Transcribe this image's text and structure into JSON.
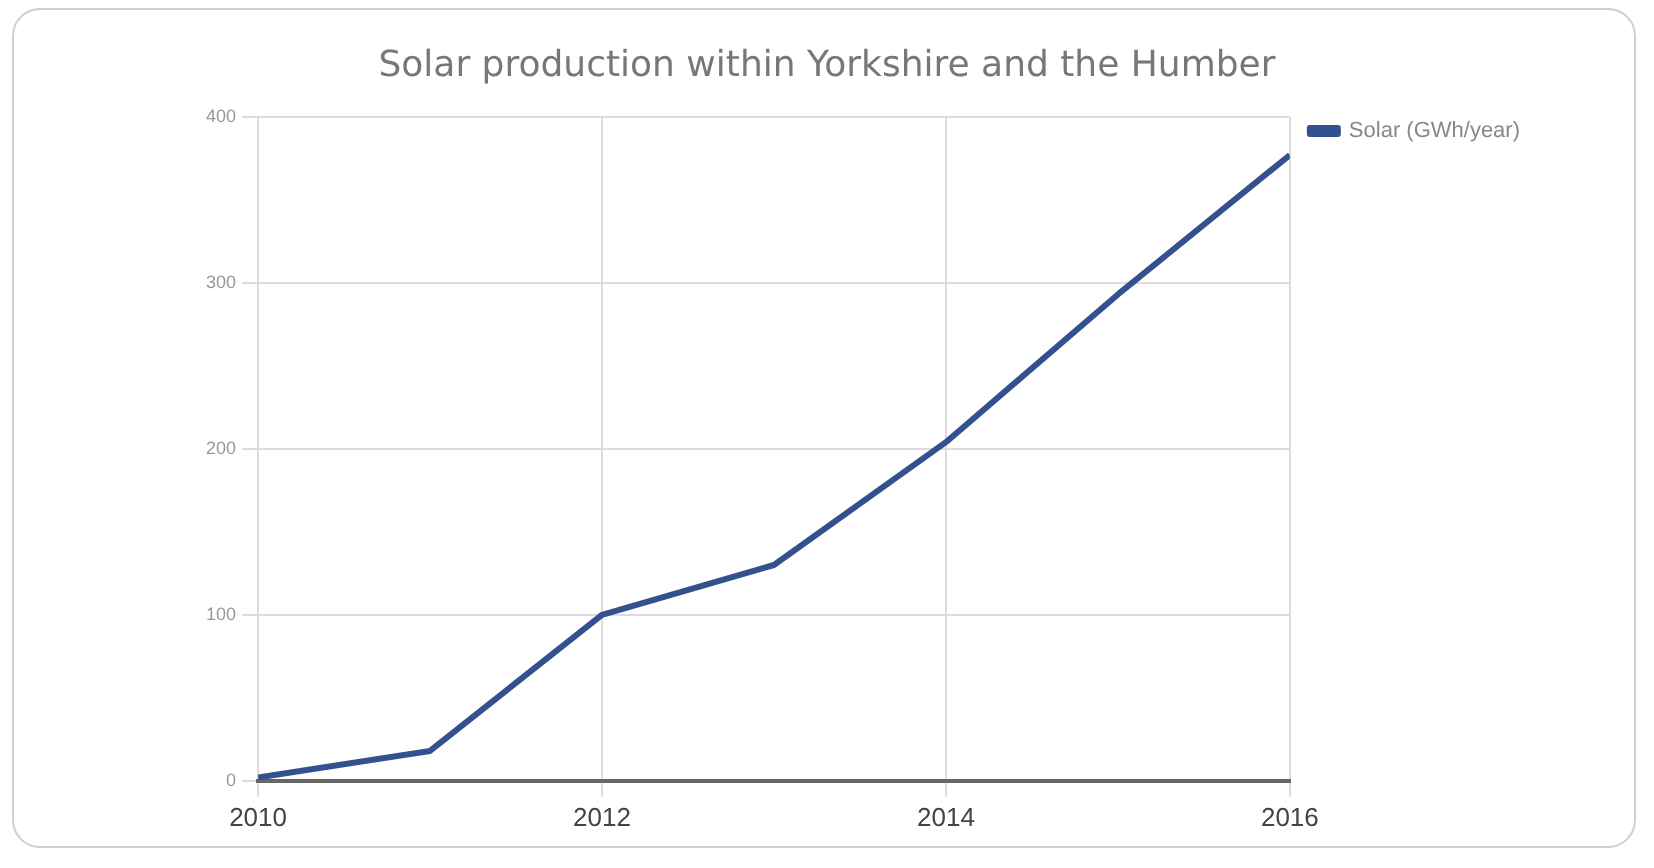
{
  "chart_data": {
    "type": "line",
    "title": "Solar production within Yorkshire and the Humber",
    "x": [
      2010,
      2011,
      2012,
      2013,
      2014,
      2015,
      2016
    ],
    "series": [
      {
        "name": "Solar (GWh/year)",
        "color": "#34518f",
        "values": [
          2,
          18,
          100,
          130,
          204,
          293,
          377
        ]
      }
    ],
    "xlim": [
      2010,
      2016
    ],
    "xticks": [
      2010,
      2012,
      2014,
      2016
    ],
    "ylim": [
      0,
      400
    ],
    "yticks": [
      0,
      100,
      200,
      300,
      400
    ],
    "grid": true,
    "legend": "right",
    "marker": "none",
    "line_style": "solid"
  }
}
